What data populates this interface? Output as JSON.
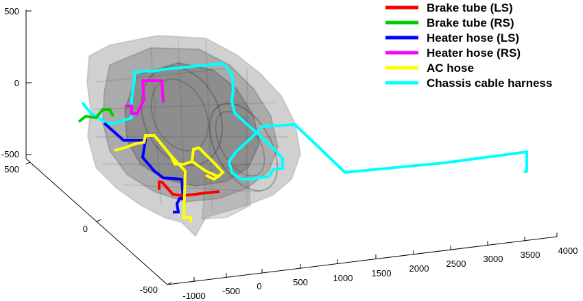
{
  "chart_data": {
    "type": "line",
    "projection": "3d",
    "title": "",
    "xlabel": "",
    "ylabel": "",
    "zlabel": "",
    "grid": false,
    "legend_position": "top-right",
    "axes": {
      "x": {
        "range": [
          -1000,
          4000
        ],
        "ticks": [
          "-1000",
          "-500",
          "0",
          "500",
          "1000",
          "1500",
          "2000",
          "2500",
          "3000",
          "3500",
          "4000"
        ]
      },
      "y": {
        "range": [
          -500,
          500
        ],
        "ticks": [
          "-500",
          "0",
          "500"
        ]
      },
      "z": {
        "range": [
          -500,
          500
        ],
        "ticks": [
          "-500",
          "0",
          "500"
        ]
      }
    },
    "background_geometry": "grey translucent vehicle mesh",
    "series": [
      {
        "name": "Brake tube (LS)",
        "color": "#ff0000"
      },
      {
        "name": "Brake tube (RS)",
        "color": "#00cc00"
      },
      {
        "name": "Heater hose (LS)",
        "color": "#0000ff"
      },
      {
        "name": "Heater hose (RS)",
        "color": "#ff00ff"
      },
      {
        "name": "AC hose",
        "color": "#ffff00"
      },
      {
        "name": "Chassis cable harness",
        "color": "#00ffff"
      }
    ]
  }
}
